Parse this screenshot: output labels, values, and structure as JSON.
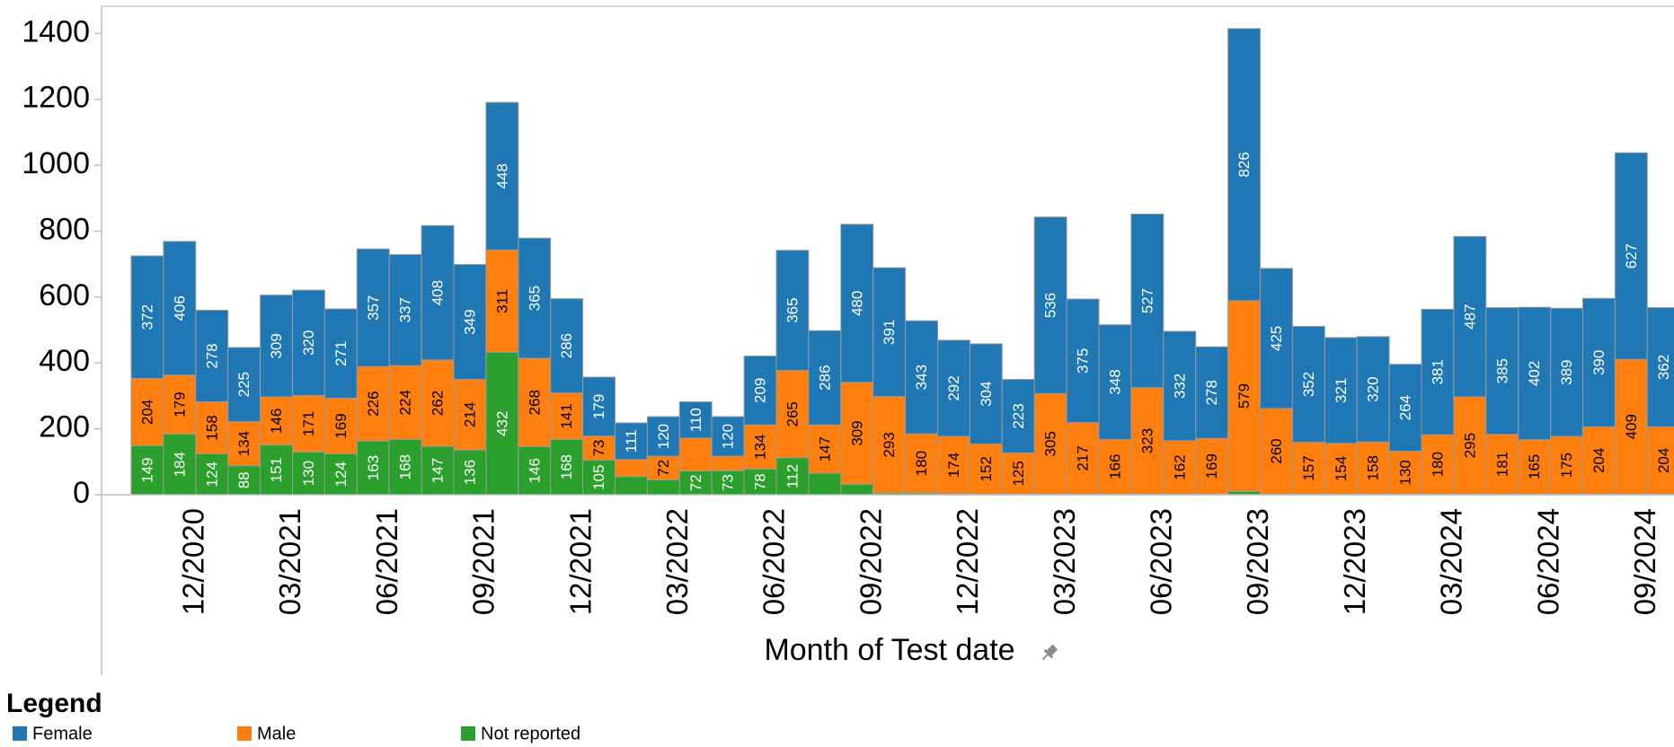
{
  "chart_data": {
    "type": "bar",
    "stacked": true,
    "x_label": "Month of Test date",
    "legend_title": "Legend",
    "categories": [
      null,
      null,
      "12/2020",
      null,
      null,
      "03/2021",
      null,
      null,
      "06/2021",
      null,
      null,
      "09/2021",
      null,
      null,
      "12/2021",
      null,
      null,
      "03/2022",
      null,
      null,
      "06/2022",
      null,
      null,
      "09/2022",
      null,
      null,
      "12/2022",
      null,
      null,
      "03/2023",
      null,
      null,
      "06/2023",
      null,
      null,
      "09/2023",
      null,
      null,
      "12/2023",
      null,
      null,
      "03/2024",
      null,
      null,
      "06/2024",
      null,
      null,
      "09/2024"
    ],
    "series": [
      {
        "name": "Female",
        "color": "#1f77b4",
        "label_color": "#ffffff",
        "values": [
          372,
          406,
          278,
          225,
          309,
          320,
          271,
          357,
          337,
          408,
          349,
          448,
          365,
          286,
          179,
          111,
          120,
          110,
          120,
          209,
          365,
          286,
          480,
          391,
          343,
          292,
          304,
          223,
          536,
          375,
          348,
          527,
          332,
          278,
          826,
          425,
          352,
          321,
          320,
          264,
          381,
          487,
          385,
          402,
          389,
          390,
          627,
          362
        ]
      },
      {
        "name": "Male",
        "color": "#ff7f0e",
        "label_color": "#000000",
        "values": [
          204,
          179,
          158,
          134,
          146,
          171,
          169,
          226,
          224,
          262,
          214,
          311,
          268,
          141,
          73,
          52,
          72,
          100,
          44,
          134,
          265,
          147,
          309,
          293,
          180,
          174,
          152,
          125,
          305,
          217,
          166,
          323,
          162,
          169,
          579,
          260,
          157,
          154,
          158,
          130,
          180,
          295,
          181,
          165,
          175,
          204,
          409,
          204
        ]
      },
      {
        "name": "Not reported",
        "color": "#2ca02c",
        "label_color": "#ffffff",
        "values": [
          149,
          184,
          124,
          88,
          151,
          130,
          124,
          163,
          168,
          147,
          136,
          432,
          146,
          168,
          105,
          55,
          45,
          72,
          73,
          78,
          112,
          65,
          32,
          5,
          5,
          3,
          2,
          2,
          2,
          2,
          2,
          2,
          2,
          2,
          10,
          2,
          2,
          2,
          2,
          2,
          2,
          2,
          2,
          2,
          2,
          2,
          2,
          2
        ]
      }
    ],
    "ylim": [
      0,
      1480
    ],
    "yticks": [
      0,
      200,
      400,
      600,
      800,
      1000,
      1200,
      1400
    ],
    "grid": false
  }
}
